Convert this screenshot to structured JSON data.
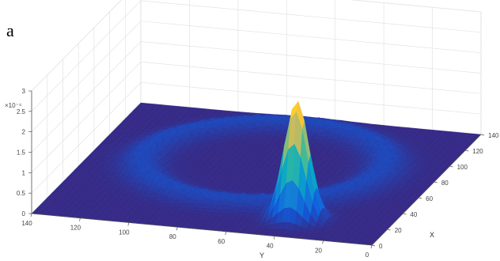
{
  "figure": {
    "panel_label": "a"
  },
  "chart_data": {
    "type": "surface",
    "xlabel": "X",
    "ylabel": "Y",
    "zlabel": "",
    "xlim": [
      0,
      140
    ],
    "ylim": [
      0,
      140
    ],
    "zlim": [
      0,
      0.0003
    ],
    "z_exponent_label": "×10⁻⁴",
    "x_ticks": [
      "0",
      "20",
      "40",
      "60",
      "80",
      "100",
      "120",
      "140"
    ],
    "y_ticks": [
      "140",
      "120",
      "100",
      "80",
      "60",
      "40",
      "20",
      "0"
    ],
    "z_ticks": [
      "0",
      "0.5",
      "1",
      "1.5",
      "2",
      "2.5",
      "3"
    ],
    "grid": true,
    "colormap": "parula",
    "colormap_stops": [
      "#352a87",
      "#0f5cdd",
      "#1481d6",
      "#06a4ca",
      "#2eb7a4",
      "#87bf77",
      "#d1bb59",
      "#fec832",
      "#f9fb0e"
    ],
    "features": {
      "ring": {
        "center_x": 80,
        "center_y": 70,
        "radius": 48,
        "width": 9,
        "height": 3e-05
      },
      "peak": {
        "x": 22,
        "y": 38,
        "height": 0.00029,
        "width": 5
      },
      "background": 0
    }
  }
}
